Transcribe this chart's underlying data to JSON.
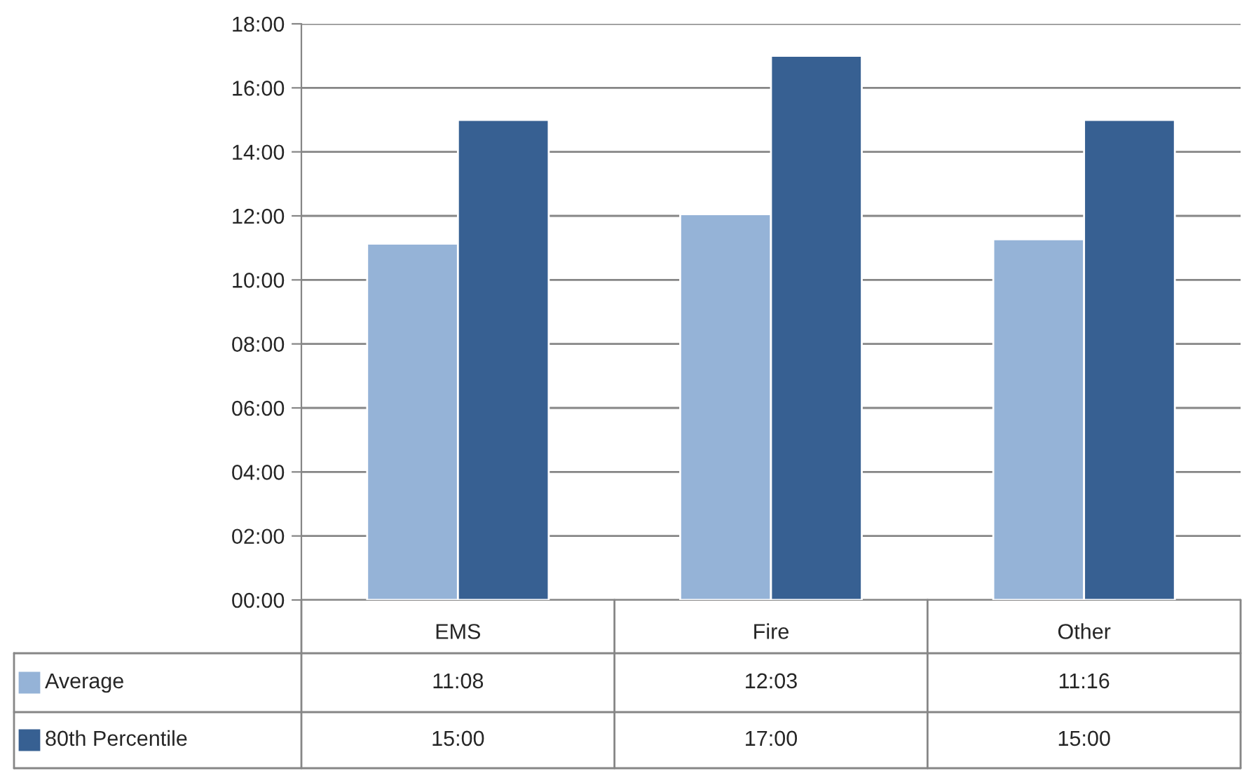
{
  "chart_data": {
    "type": "bar",
    "categories": [
      "EMS",
      "Fire",
      "Other"
    ],
    "series": [
      {
        "name": "Average",
        "color": "#95b3d7",
        "values": [
          11.13,
          12.05,
          11.27
        ],
        "value_labels": [
          "11:08",
          "12:03",
          "11:16"
        ]
      },
      {
        "name": "80th Percentile",
        "color": "#376092",
        "values": [
          15,
          17,
          15
        ],
        "value_labels": [
          "15:00",
          "17:00",
          "15:00"
        ]
      }
    ],
    "ylim": [
      0,
      18
    ],
    "yticks": [
      {
        "value": 0,
        "label": "00:00"
      },
      {
        "value": 2,
        "label": "02:00"
      },
      {
        "value": 4,
        "label": "04:00"
      },
      {
        "value": 6,
        "label": "06:00"
      },
      {
        "value": 8,
        "label": "08:00"
      },
      {
        "value": 10,
        "label": "10:00"
      },
      {
        "value": 12,
        "label": "12:00"
      },
      {
        "value": 14,
        "label": "14:00"
      },
      {
        "value": 16,
        "label": "16:00"
      },
      {
        "value": 18,
        "label": "18:00"
      }
    ],
    "grid": "y",
    "legend": "bottom left"
  }
}
